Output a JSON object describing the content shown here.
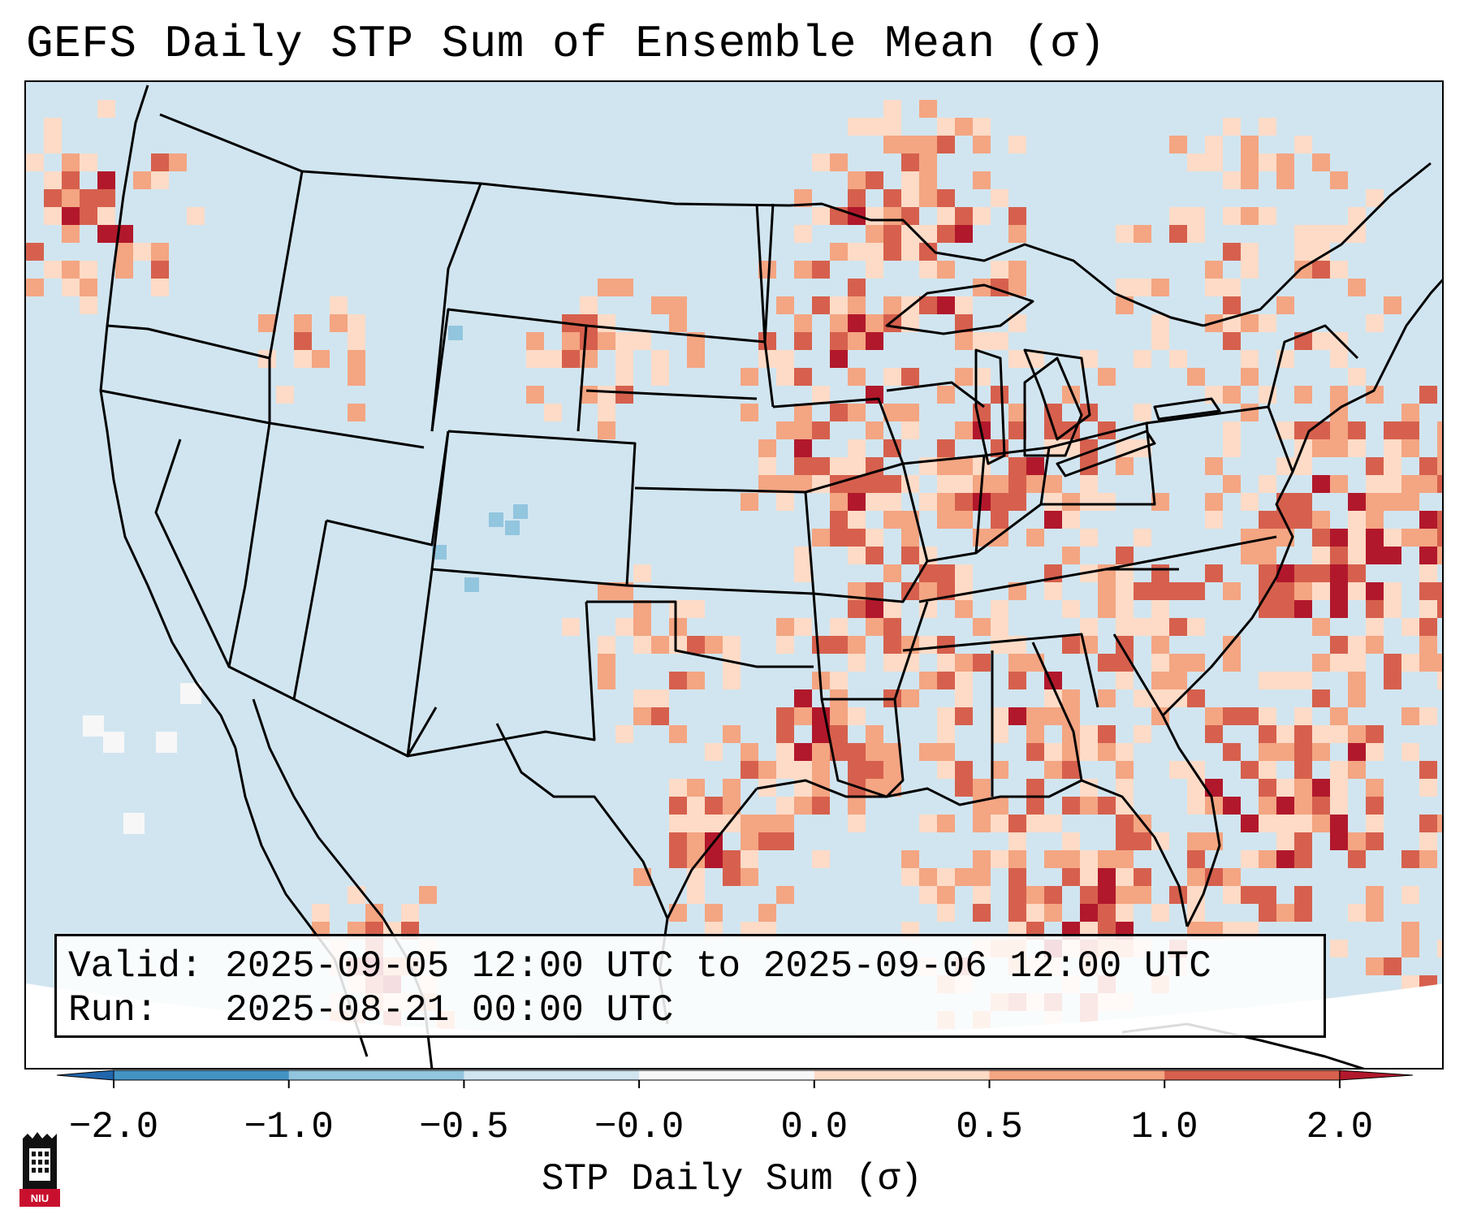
{
  "title": "GEFS Daily STP Sum of Ensemble Mean (σ)",
  "legend": {
    "valid_line": "Valid: 2025-09-05 12:00 UTC to 2025-09-06 12:00 UTC",
    "run_line": "Run:   2025-08-21 00:00 UTC"
  },
  "colorbar": {
    "label": "STP Daily Sum (σ)",
    "ticks": [
      "−2.0",
      "−1.0",
      "−0.5",
      "−0.0",
      "0.0",
      "0.5",
      "1.0",
      "2.0"
    ],
    "colors": [
      "#2166ac",
      "#4393c3",
      "#92c5de",
      "#d1e5f0",
      "#f7f7f7",
      "#fddbc7",
      "#f4a582",
      "#d6604d",
      "#b2182b"
    ],
    "extend": "both"
  },
  "logo": {
    "name": "NIU",
    "text": "NIU"
  },
  "map": {
    "background_color": "#d1e5f0",
    "land_outline_color": "#000000"
  }
}
